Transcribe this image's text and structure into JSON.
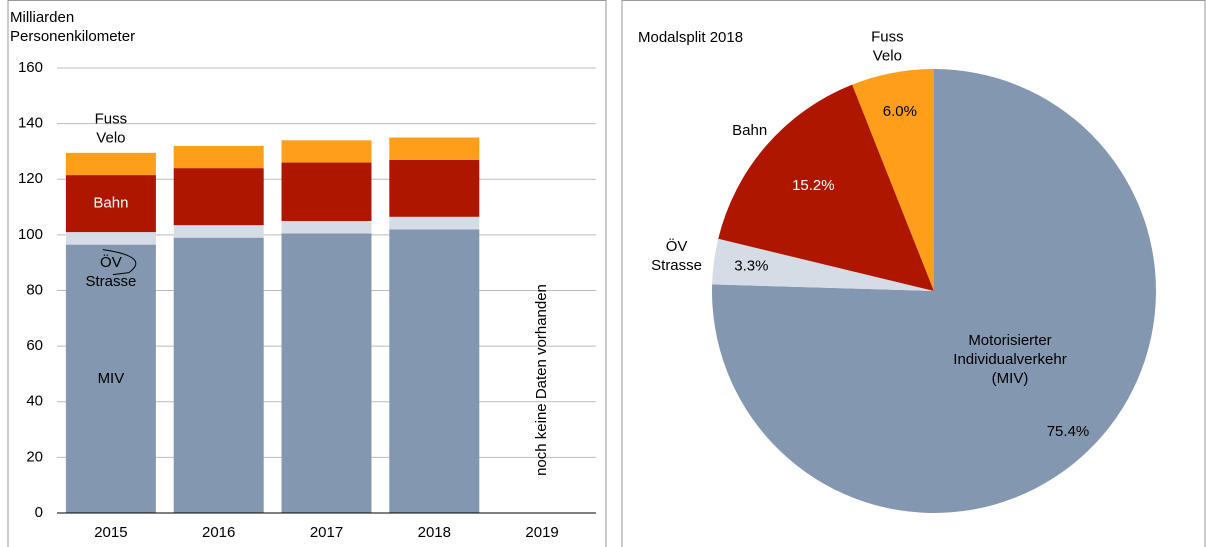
{
  "chart_data": [
    {
      "type": "stacked-bar",
      "y_label": "Milliarden Personenkilometer",
      "categories": [
        "2015",
        "2016",
        "2017",
        "2018",
        "2019"
      ],
      "series": [
        {
          "name": "MIV",
          "color": "#8497b0",
          "values": [
            96.5,
            99,
            100.5,
            102,
            null
          ]
        },
        {
          "name": "ÖV Strasse",
          "color": "#d6dce5",
          "values": [
            4.5,
            4.5,
            4.5,
            4.5,
            null
          ]
        },
        {
          "name": "Bahn",
          "color": "#ae1600",
          "values": [
            20.5,
            20.5,
            21,
            20.5,
            null
          ]
        },
        {
          "name": "Fuss Velo",
          "color": "#ff9e1b",
          "values": [
            8,
            8,
            8,
            8,
            null
          ]
        }
      ],
      "annotation": "noch keine Daten vorhanden",
      "ylim": [
        0,
        160
      ],
      "yticks": [
        0,
        20,
        40,
        60,
        80,
        100,
        120,
        140,
        160
      ],
      "grid": true
    },
    {
      "type": "pie",
      "title": "Modalsplit 2018",
      "categories": [
        "Motorisierter Individualverkehr (MIV)",
        "ÖV Strasse",
        "Bahn",
        "Fuss Velo"
      ],
      "values": [
        75.4,
        3.3,
        15.2,
        6.0
      ],
      "value_labels": [
        "75.4%",
        "3.3%",
        "15.2%",
        "6.0%"
      ],
      "colors": [
        "#8497b0",
        "#d6dce5",
        "#ae1600",
        "#ff9e1b"
      ]
    }
  ]
}
